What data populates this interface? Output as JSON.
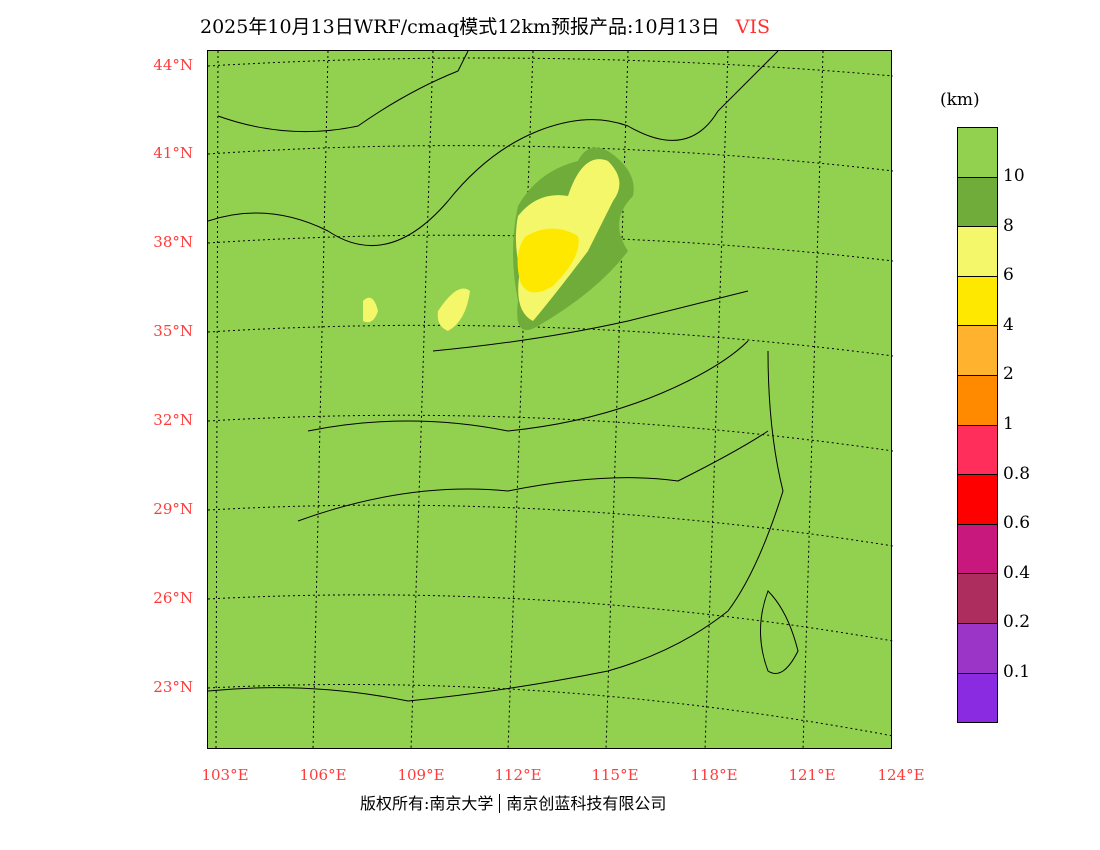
{
  "title": {
    "text": "2025年10月13日WRF/cmaq模式12km预报产品:10月13日",
    "variable": "VIS"
  },
  "lat_labels": [
    "44°N",
    "41°N",
    "38°N",
    "35°N",
    "32°N",
    "29°N",
    "26°N",
    "23°N"
  ],
  "lon_labels": [
    "103°E",
    "106°E",
    "109°E",
    "112°E",
    "115°E",
    "118°E",
    "121°E",
    "124°E"
  ],
  "colorbar": {
    "unit": "(km)",
    "colors": [
      "#92d050",
      "#6fac3a",
      "#f5f76a",
      "#ffe800",
      "#ffb22e",
      "#ff8a00",
      "#ff2e5a",
      "#ff0000",
      "#c8187e",
      "#ad2e5e",
      "#9a35c8",
      "#8a2be2"
    ],
    "labels": [
      "10",
      "8",
      "6",
      "4",
      "2",
      "1",
      "0.8",
      "0.6",
      "0.4",
      "0.2",
      "0.1"
    ]
  },
  "footer": {
    "left": "版权所有:南京大学",
    "right": "南京创蓝科技有限公司"
  }
}
